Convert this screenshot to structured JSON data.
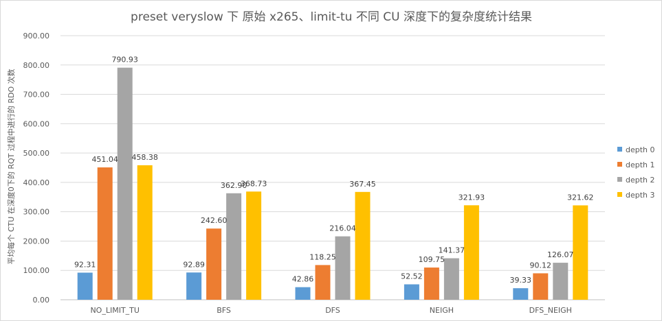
{
  "chart_data": {
    "type": "bar",
    "title": "preset veryslow 下 原始 x265、limit-tu 不同 CU 深度下的复杂度统计结果",
    "xlabel": "",
    "ylabel": "平均每个 CTU 在深度0下的 RQT 过程中进行的 RDO 次数",
    "ylim": [
      0,
      900
    ],
    "yticks": [
      "0.00",
      "100.00",
      "200.00",
      "300.00",
      "400.00",
      "500.00",
      "600.00",
      "700.00",
      "800.00",
      "900.00"
    ],
    "grid": true,
    "legend_position": "right",
    "categories": [
      "NO_LIMIT_TU",
      "BFS",
      "DFS",
      "NEIGH",
      "DFS_NEIGH"
    ],
    "series": [
      {
        "name": "depth 0",
        "color": "#5b9bd5",
        "values": [
          92.31,
          92.89,
          42.86,
          52.52,
          39.33
        ],
        "labels": [
          "92.31",
          "92.89",
          "42.86",
          "52.52",
          "39.33"
        ]
      },
      {
        "name": "depth 1",
        "color": "#ed7d31",
        "values": [
          451.04,
          242.6,
          118.25,
          109.75,
          90.12
        ],
        "labels": [
          "451.04",
          "242.60",
          "118.25",
          "109.75",
          "90.12"
        ]
      },
      {
        "name": "depth 2",
        "color": "#a5a5a5",
        "values": [
          790.93,
          362.9,
          216.04,
          141.37,
          126.07
        ],
        "labels": [
          "790.93",
          "362.90",
          "216.04",
          "141.37",
          "126.07"
        ]
      },
      {
        "name": "depth 3",
        "color": "#ffc000",
        "values": [
          458.38,
          368.73,
          367.45,
          321.93,
          321.62
        ],
        "labels": [
          "458.38",
          "368.73",
          "367.45",
          "321.93",
          "321.62"
        ]
      }
    ]
  }
}
